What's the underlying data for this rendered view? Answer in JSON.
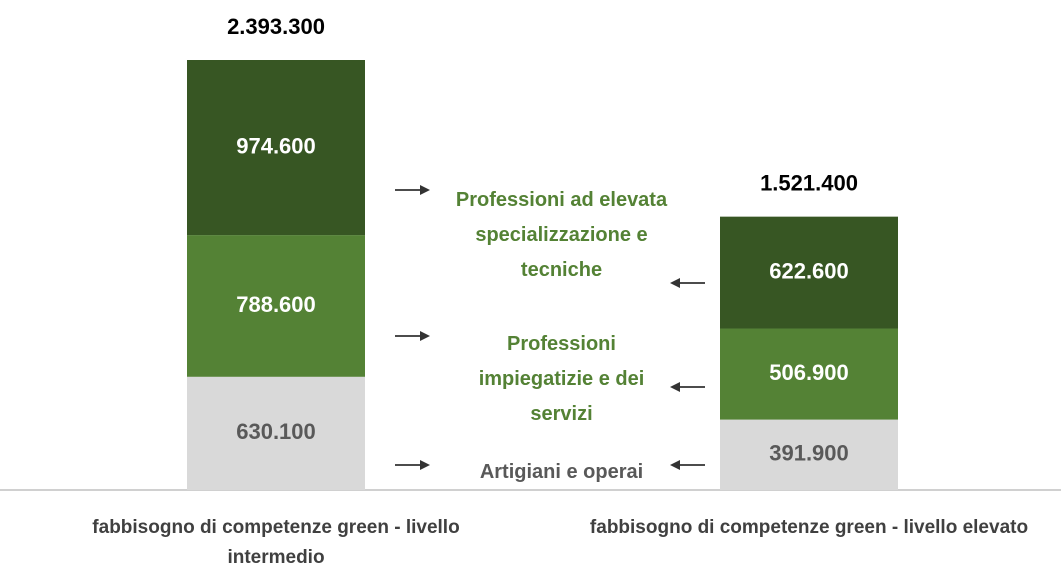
{
  "chart_data": {
    "type": "stacked_bar",
    "categories": [
      "fabbisogno di competenze green - livello intermedio",
      "fabbisogno di competenze green - livello elevato"
    ],
    "series": [
      {
        "name": "Artigiani e operai",
        "color": "#d9d9d9",
        "values": [
          630100,
          391900
        ],
        "value_labels": [
          "630.100",
          "391.900"
        ]
      },
      {
        "name": "Professioni impiegatizie e dei servizi",
        "color": "#548235",
        "values": [
          788600,
          506900
        ],
        "value_labels": [
          "788.600",
          "506.900"
        ]
      },
      {
        "name": "Professioni ad elevata specializzazione e tecniche",
        "color": "#375623",
        "values": [
          974600,
          622600
        ],
        "value_labels": [
          "974.600",
          "622.600"
        ]
      }
    ],
    "totals": [
      2393300,
      1521400
    ],
    "total_labels": [
      "2.393.300",
      "1.521.400"
    ]
  }
}
